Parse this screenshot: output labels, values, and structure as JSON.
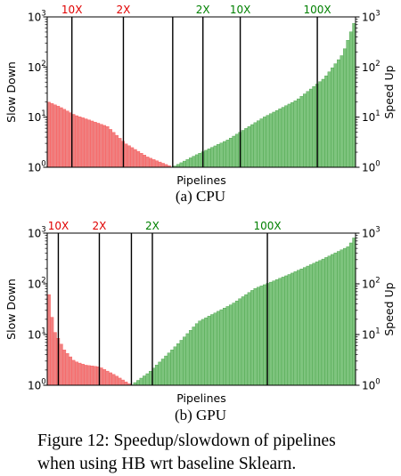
{
  "figure_caption": "Figure 12: Speedup/slowdown of pipelines when using HB wrt baseline Sklearn.",
  "colors": {
    "slow": "#f08080",
    "slow_edge": "#ff4d4d",
    "fast": "#7ec47e",
    "fast_edge": "#3a9a3a",
    "slow_text": "#e00000",
    "fast_text": "#008000"
  },
  "chart_data": [
    {
      "type": "bar",
      "title": "",
      "subplot_caption": "(a) CPU",
      "xlabel": "Pipelines",
      "ylabel_left": "Slow Down",
      "ylabel_right": "Speed Up",
      "yscale": "log",
      "ylim": [
        1,
        1000
      ],
      "y_ticks": [
        "10^0",
        "10^1",
        "10^2",
        "10^3"
      ],
      "n_pipelines": 100,
      "slowdown_profile": [
        {
          "pos": 0.0,
          "value": 40
        },
        {
          "pos": 0.01,
          "value": 20
        },
        {
          "pos": 0.1,
          "value": 16
        },
        {
          "pos": 0.22,
          "value": 11
        },
        {
          "pos": 0.35,
          "value": 8.5
        },
        {
          "pos": 0.48,
          "value": 6.5
        },
        {
          "pos": 0.62,
          "value": 3
        },
        {
          "pos": 0.8,
          "value": 1.6
        },
        {
          "pos": 1.0,
          "value": 1.0
        }
      ],
      "speedup_profile": [
        {
          "pos": 0.0,
          "value": 1.0
        },
        {
          "pos": 0.12,
          "value": 1.7
        },
        {
          "pos": 0.3,
          "value": 3.5
        },
        {
          "pos": 0.5,
          "value": 10
        },
        {
          "pos": 0.68,
          "value": 22
        },
        {
          "pos": 0.83,
          "value": 60
        },
        {
          "pos": 0.93,
          "value": 180
        },
        {
          "pos": 1.0,
          "value": 900
        }
      ],
      "markers": [
        {
          "label": "10X",
          "side": "slow",
          "index_frac": 0.08
        },
        {
          "label": "2X",
          "side": "slow",
          "index_frac": 0.247
        },
        {
          "label": "",
          "side": "divider",
          "index_frac": 0.407
        },
        {
          "label": "2X",
          "side": "fast",
          "index_frac": 0.505
        },
        {
          "label": "10X",
          "side": "fast",
          "index_frac": 0.626
        },
        {
          "label": "100X",
          "side": "fast",
          "index_frac": 0.876
        }
      ],
      "split_frac": 0.407
    },
    {
      "type": "bar",
      "title": "",
      "subplot_caption": "(b) GPU",
      "xlabel": "Pipelines",
      "ylabel_left": "Slow Down",
      "ylabel_right": "Speed Up",
      "yscale": "log",
      "ylim": [
        1,
        1000
      ],
      "y_ticks": [
        "10^0",
        "10^1",
        "10^2",
        "10^3"
      ],
      "n_pipelines": 100,
      "slowdown_profile": [
        {
          "pos": 0.0,
          "value": 120
        },
        {
          "pos": 0.03,
          "value": 40
        },
        {
          "pos": 0.08,
          "value": 12
        },
        {
          "pos": 0.2,
          "value": 5
        },
        {
          "pos": 0.32,
          "value": 3
        },
        {
          "pos": 0.45,
          "value": 2.5
        },
        {
          "pos": 0.62,
          "value": 2.3
        },
        {
          "pos": 0.8,
          "value": 1.6
        },
        {
          "pos": 1.0,
          "value": 1.0
        }
      ],
      "speedup_profile": [
        {
          "pos": 0.0,
          "value": 1.0
        },
        {
          "pos": 0.08,
          "value": 1.8
        },
        {
          "pos": 0.2,
          "value": 6
        },
        {
          "pos": 0.3,
          "value": 18
        },
        {
          "pos": 0.45,
          "value": 40
        },
        {
          "pos": 0.55,
          "value": 80
        },
        {
          "pos": 0.7,
          "value": 150
        },
        {
          "pos": 0.85,
          "value": 300
        },
        {
          "pos": 0.97,
          "value": 550
        },
        {
          "pos": 1.0,
          "value": 900
        }
      ],
      "markers": [
        {
          "label": "10X",
          "side": "slow",
          "index_frac": 0.036
        },
        {
          "label": "2X",
          "side": "slow",
          "index_frac": 0.169
        },
        {
          "label": "",
          "side": "divider",
          "index_frac": 0.273
        },
        {
          "label": "2X",
          "side": "fast",
          "index_frac": 0.341
        },
        {
          "label": "100X",
          "side": "fast",
          "index_frac": 0.714
        }
      ],
      "split_frac": 0.273
    }
  ]
}
